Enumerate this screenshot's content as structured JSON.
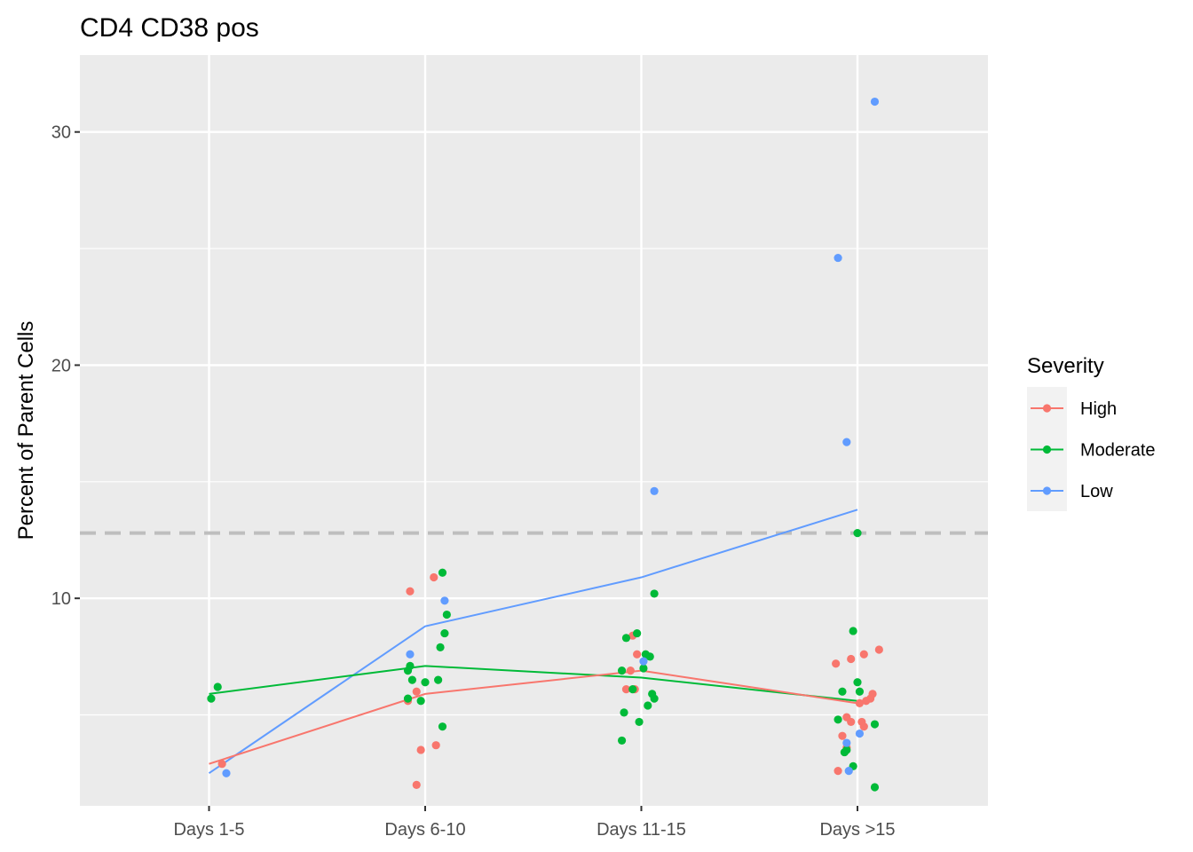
{
  "chart_data": {
    "type": "scatter",
    "title": "CD4 CD38 pos",
    "xlabel": "",
    "ylabel": "Percent of Parent Cells",
    "categories": [
      "Days 1-5",
      "Days 6-10",
      "Days 11-15",
      "Days >15"
    ],
    "ylim": [
      1.1,
      33.3
    ],
    "yticks": [
      10,
      20,
      30
    ],
    "grid": true,
    "reference_line": {
      "y": 12.8,
      "style": "dashed",
      "color": "#bebebe"
    },
    "legend": {
      "title": "Severity",
      "placement": "right"
    },
    "series": [
      {
        "name": "High",
        "color": "#F8766D",
        "trend": [
          2.9,
          5.9,
          6.9,
          5.5
        ],
        "points": [
          {
            "x": "Days 1-5",
            "dx": 0.06,
            "y": 2.9
          },
          {
            "x": "Days 6-10",
            "dx": -0.07,
            "y": 10.3
          },
          {
            "x": "Days 6-10",
            "dx": 0.04,
            "y": 10.9
          },
          {
            "x": "Days 6-10",
            "dx": -0.04,
            "y": 6.0
          },
          {
            "x": "Days 6-10",
            "dx": -0.08,
            "y": 5.6
          },
          {
            "x": "Days 6-10",
            "dx": -0.02,
            "y": 3.5
          },
          {
            "x": "Days 6-10",
            "dx": 0.05,
            "y": 3.7
          },
          {
            "x": "Days 6-10",
            "dx": -0.04,
            "y": 2.0
          },
          {
            "x": "Days 11-15",
            "dx": -0.04,
            "y": 8.4
          },
          {
            "x": "Days 11-15",
            "dx": -0.02,
            "y": 7.6
          },
          {
            "x": "Days 11-15",
            "dx": -0.05,
            "y": 6.9
          },
          {
            "x": "Days 11-15",
            "dx": -0.07,
            "y": 6.1
          },
          {
            "x": "Days 11-15",
            "dx": -0.03,
            "y": 6.1
          },
          {
            "x": "Days >15",
            "dx": 0.1,
            "y": 7.8
          },
          {
            "x": "Days >15",
            "dx": 0.03,
            "y": 7.6
          },
          {
            "x": "Days >15",
            "dx": -0.03,
            "y": 7.4
          },
          {
            "x": "Days >15",
            "dx": -0.1,
            "y": 7.2
          },
          {
            "x": "Days >15",
            "dx": 0.07,
            "y": 5.9
          },
          {
            "x": "Days >15",
            "dx": 0.06,
            "y": 5.7
          },
          {
            "x": "Days >15",
            "dx": 0.04,
            "y": 5.6
          },
          {
            "x": "Days >15",
            "dx": 0.01,
            "y": 5.5
          },
          {
            "x": "Days >15",
            "dx": -0.05,
            "y": 4.9
          },
          {
            "x": "Days >15",
            "dx": -0.03,
            "y": 4.7
          },
          {
            "x": "Days >15",
            "dx": 0.02,
            "y": 4.7
          },
          {
            "x": "Days >15",
            "dx": 0.03,
            "y": 4.5
          },
          {
            "x": "Days >15",
            "dx": -0.07,
            "y": 4.1
          },
          {
            "x": "Days >15",
            "dx": -0.05,
            "y": 3.6
          },
          {
            "x": "Days >15",
            "dx": -0.09,
            "y": 2.6
          }
        ]
      },
      {
        "name": "Moderate",
        "color": "#00BA38",
        "trend": [
          5.9,
          7.1,
          6.6,
          5.6
        ],
        "points": [
          {
            "x": "Days 1-5",
            "dx": 0.04,
            "y": 6.2
          },
          {
            "x": "Days 1-5",
            "dx": 0.01,
            "y": 5.7
          },
          {
            "x": "Days 6-10",
            "dx": 0.08,
            "y": 11.1
          },
          {
            "x": "Days 6-10",
            "dx": 0.1,
            "y": 9.3
          },
          {
            "x": "Days 6-10",
            "dx": 0.09,
            "y": 8.5
          },
          {
            "x": "Days 6-10",
            "dx": 0.07,
            "y": 7.9
          },
          {
            "x": "Days 6-10",
            "dx": -0.07,
            "y": 7.1
          },
          {
            "x": "Days 6-10",
            "dx": -0.08,
            "y": 6.9
          },
          {
            "x": "Days 6-10",
            "dx": -0.06,
            "y": 6.5
          },
          {
            "x": "Days 6-10",
            "dx": 0.0,
            "y": 6.4
          },
          {
            "x": "Days 6-10",
            "dx": 0.06,
            "y": 6.5
          },
          {
            "x": "Days 6-10",
            "dx": -0.08,
            "y": 5.7
          },
          {
            "x": "Days 6-10",
            "dx": -0.02,
            "y": 5.6
          },
          {
            "x": "Days 6-10",
            "dx": 0.08,
            "y": 4.5
          },
          {
            "x": "Days 11-15",
            "dx": 0.06,
            "y": 10.2
          },
          {
            "x": "Days 11-15",
            "dx": -0.02,
            "y": 8.5
          },
          {
            "x": "Days 11-15",
            "dx": -0.07,
            "y": 8.3
          },
          {
            "x": "Days 11-15",
            "dx": 0.02,
            "y": 7.6
          },
          {
            "x": "Days 11-15",
            "dx": 0.04,
            "y": 7.5
          },
          {
            "x": "Days 11-15",
            "dx": 0.01,
            "y": 7.0
          },
          {
            "x": "Days 11-15",
            "dx": -0.09,
            "y": 6.9
          },
          {
            "x": "Days 11-15",
            "dx": -0.04,
            "y": 6.1
          },
          {
            "x": "Days 11-15",
            "dx": 0.05,
            "y": 5.9
          },
          {
            "x": "Days 11-15",
            "dx": 0.06,
            "y": 5.7
          },
          {
            "x": "Days 11-15",
            "dx": 0.03,
            "y": 5.4
          },
          {
            "x": "Days 11-15",
            "dx": -0.08,
            "y": 5.1
          },
          {
            "x": "Days 11-15",
            "dx": -0.01,
            "y": 4.7
          },
          {
            "x": "Days 11-15",
            "dx": -0.09,
            "y": 3.9
          },
          {
            "x": "Days >15",
            "dx": 0.0,
            "y": 12.8
          },
          {
            "x": "Days >15",
            "dx": -0.02,
            "y": 8.6
          },
          {
            "x": "Days >15",
            "dx": 0.0,
            "y": 6.4
          },
          {
            "x": "Days >15",
            "dx": -0.07,
            "y": 6.0
          },
          {
            "x": "Days >15",
            "dx": 0.01,
            "y": 6.0
          },
          {
            "x": "Days >15",
            "dx": -0.09,
            "y": 4.8
          },
          {
            "x": "Days >15",
            "dx": 0.08,
            "y": 4.6
          },
          {
            "x": "Days >15",
            "dx": -0.05,
            "y": 3.5
          },
          {
            "x": "Days >15",
            "dx": -0.06,
            "y": 3.4
          },
          {
            "x": "Days >15",
            "dx": -0.02,
            "y": 2.8
          },
          {
            "x": "Days >15",
            "dx": 0.08,
            "y": 1.9
          }
        ]
      },
      {
        "name": "Low",
        "color": "#619CFF",
        "trend": [
          2.5,
          8.8,
          10.9,
          13.8
        ],
        "points": [
          {
            "x": "Days 1-5",
            "dx": 0.08,
            "y": 2.5
          },
          {
            "x": "Days 6-10",
            "dx": -0.07,
            "y": 7.6
          },
          {
            "x": "Days 6-10",
            "dx": 0.09,
            "y": 9.9
          },
          {
            "x": "Days 11-15",
            "dx": 0.06,
            "y": 14.6
          },
          {
            "x": "Days 11-15",
            "dx": 0.01,
            "y": 7.3
          },
          {
            "x": "Days >15",
            "dx": 0.08,
            "y": 31.3
          },
          {
            "x": "Days >15",
            "dx": -0.09,
            "y": 24.6
          },
          {
            "x": "Days >15",
            "dx": -0.05,
            "y": 16.7
          },
          {
            "x": "Days >15",
            "dx": 0.01,
            "y": 4.2
          },
          {
            "x": "Days >15",
            "dx": -0.05,
            "y": 3.8
          },
          {
            "x": "Days >15",
            "dx": -0.04,
            "y": 2.6
          }
        ]
      }
    ]
  }
}
